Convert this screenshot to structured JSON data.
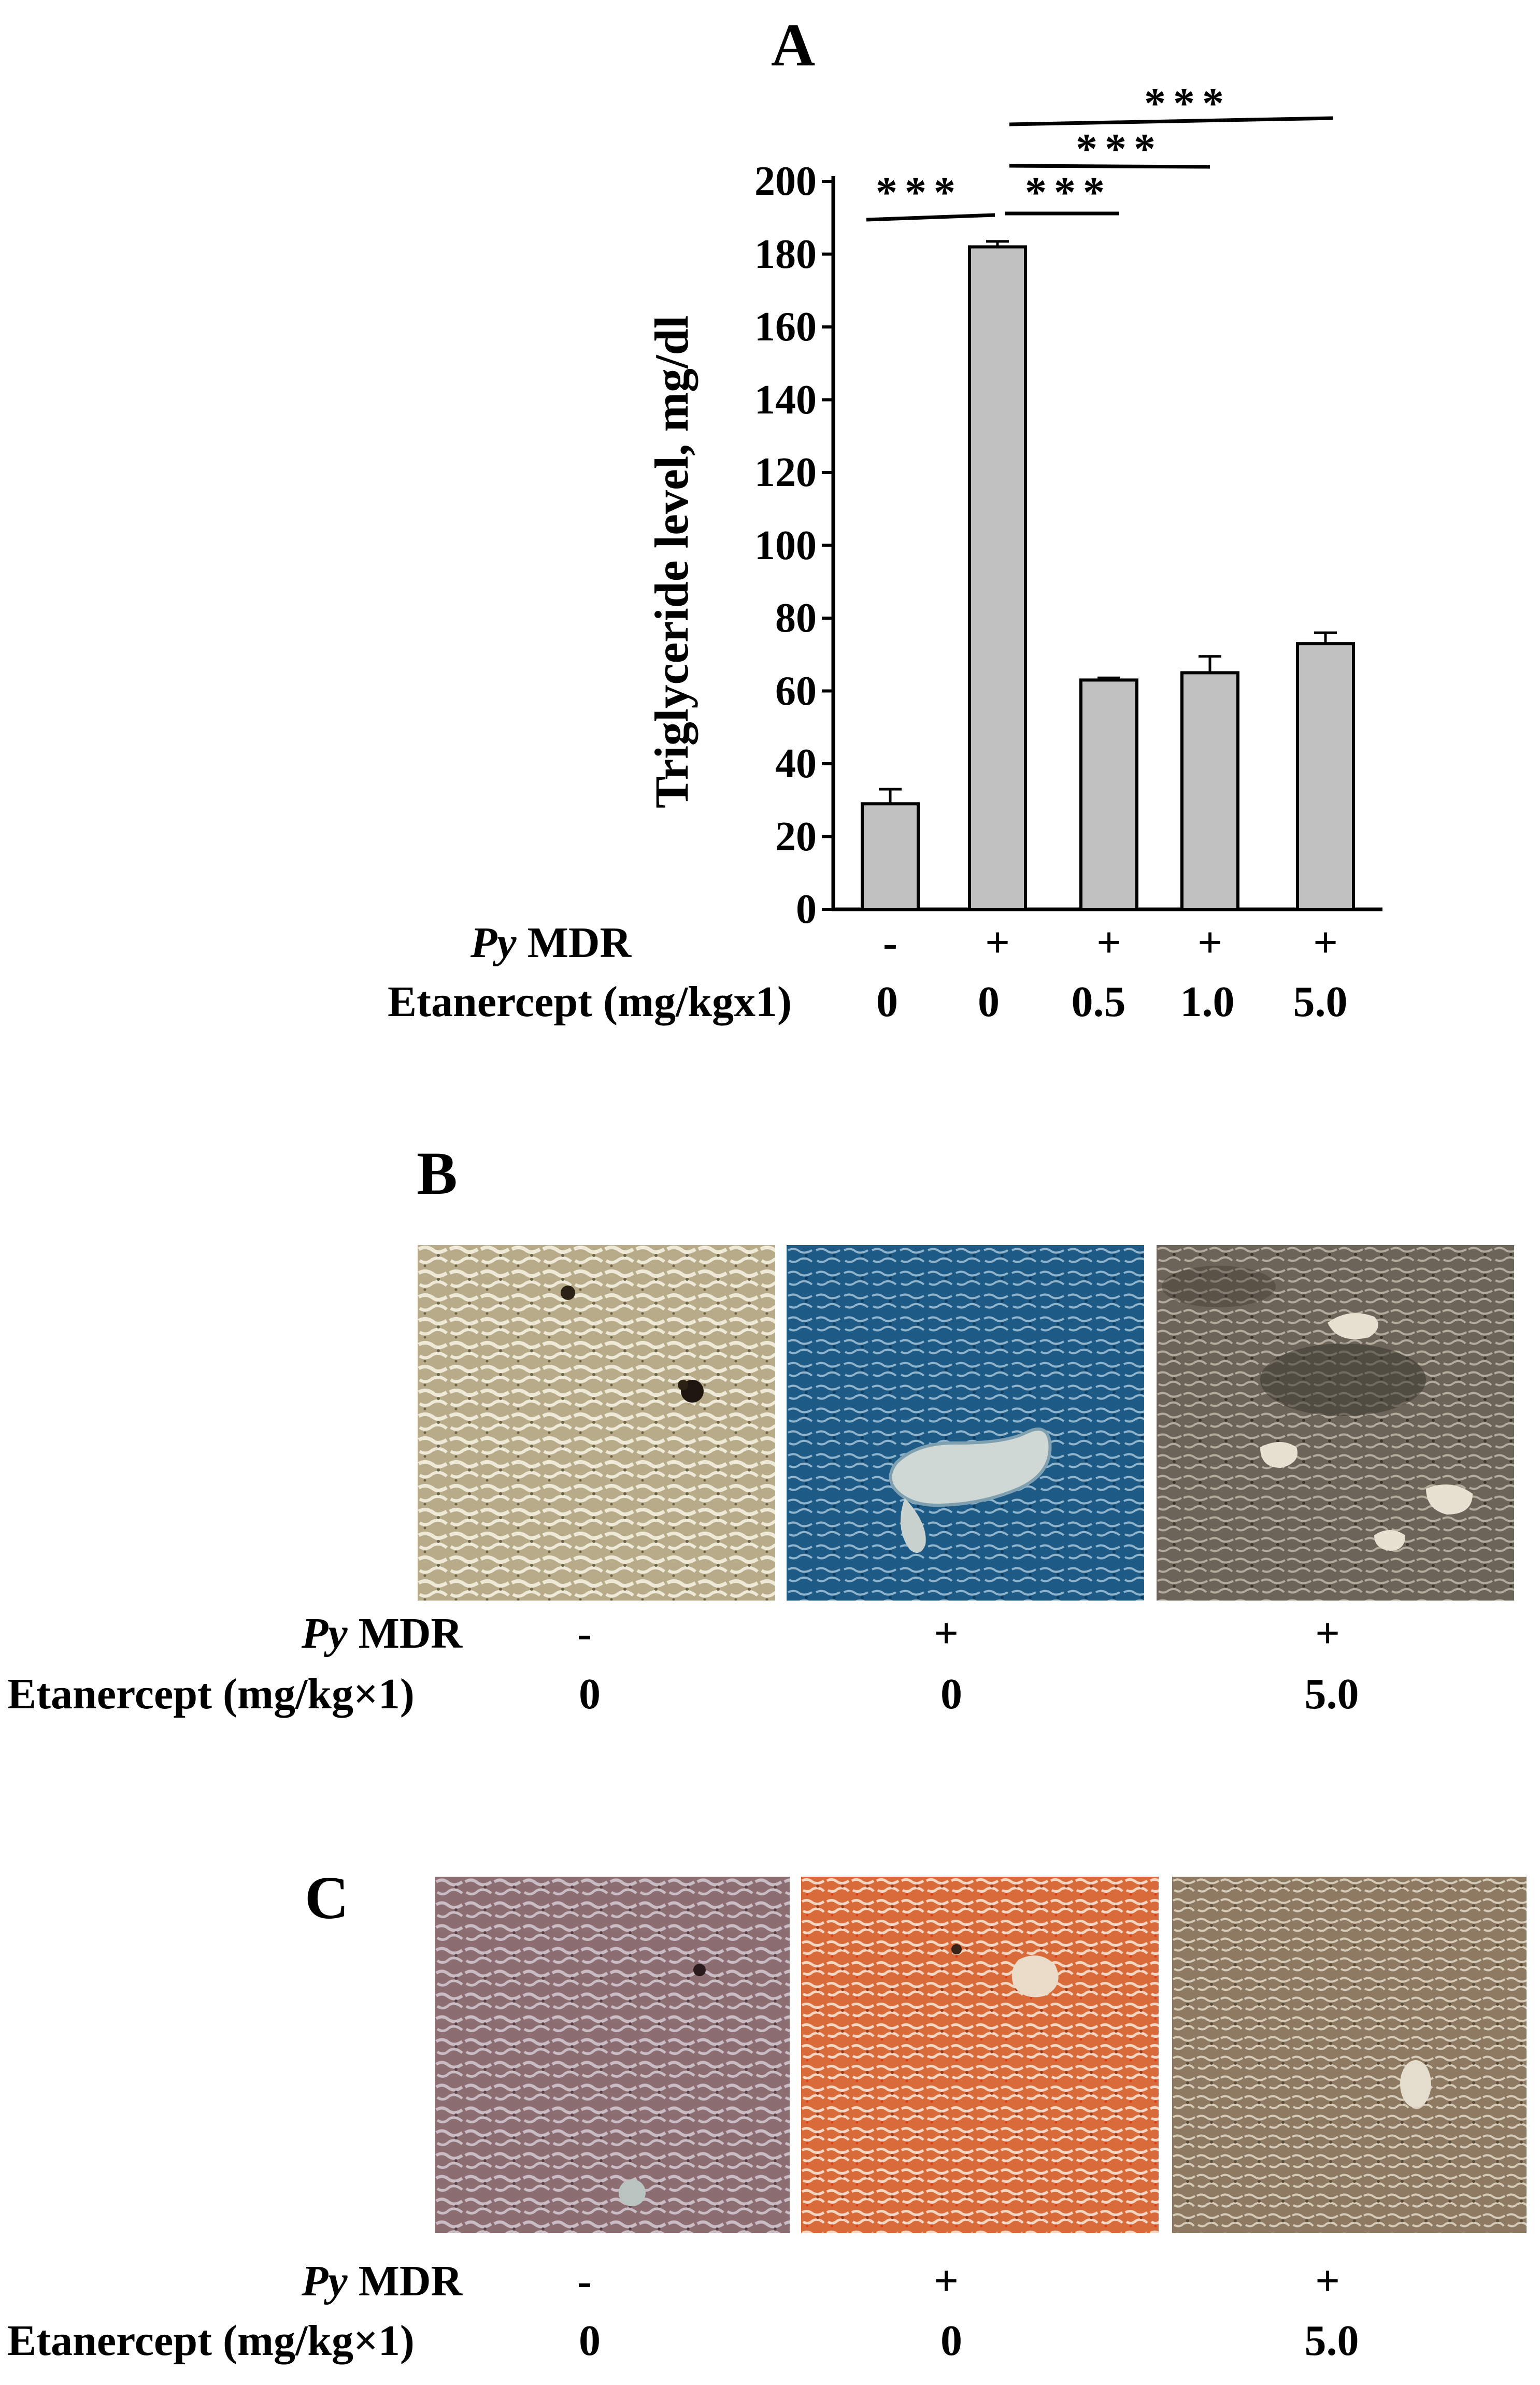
{
  "panel_a": {
    "letter": "A",
    "py_label_italic": "Py",
    "py_label_rest": " MDR",
    "etanercept_label": "Etanercept (mg/kgx1)"
  },
  "chart_data": {
    "type": "bar",
    "title": "",
    "xlabel": "",
    "ylabel": "Triglyceride level, mg/dl",
    "ylim": [
      0,
      200
    ],
    "yticks": [
      0,
      20,
      40,
      60,
      80,
      100,
      120,
      140,
      160,
      180,
      200
    ],
    "categories": [
      "1",
      "2",
      "3",
      "4",
      "5"
    ],
    "py_mdr": [
      "-",
      "+",
      "+",
      "+",
      "+"
    ],
    "etanercept": [
      "0",
      "0",
      "0.5",
      "1.0",
      "5.0"
    ],
    "values": [
      29,
      182,
      63,
      65,
      73
    ],
    "errors": [
      4,
      1.5,
      0.6,
      4.5,
      3
    ],
    "bar_color": "#c0c0c0",
    "grid": false,
    "significance": [
      {
        "from": 0,
        "to": 1,
        "label": "***"
      },
      {
        "from": 1,
        "to": 2,
        "label": "***"
      },
      {
        "from": 1,
        "to": 3,
        "label": "***"
      },
      {
        "from": 1,
        "to": 4,
        "label": "***"
      }
    ]
  },
  "panel_b": {
    "letter": "B",
    "py_label_italic": "Py",
    "py_label_rest": " MDR",
    "etanercept_label": "Etanercept (mg/kg×1)",
    "py_mdr": [
      "-",
      "+",
      "+"
    ],
    "etanercept": [
      "0",
      "0",
      "5.0"
    ],
    "tile_colors": [
      "#b8ac8c",
      "#1f5a86",
      "#6e665a"
    ]
  },
  "panel_c": {
    "letter": "C",
    "py_label_italic": "Py",
    "py_label_rest": " MDR",
    "etanercept_label": "Etanercept (mg/kg×1)",
    "py_mdr": [
      "-",
      "+",
      "+"
    ],
    "etanercept": [
      "0",
      "0",
      "5.0"
    ],
    "tile_colors": [
      "#8a6e72",
      "#d86a3a",
      "#8e7a62"
    ]
  }
}
